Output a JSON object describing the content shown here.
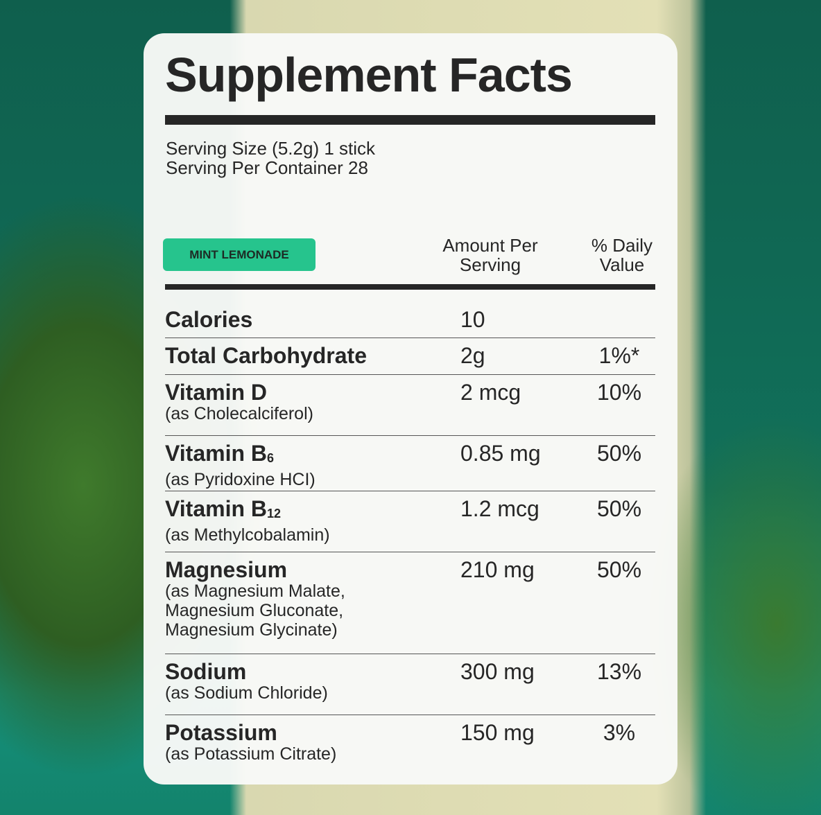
{
  "header": {
    "title": "Supplement Facts"
  },
  "serving": {
    "size": "Serving Size (5.2g) 1 stick",
    "per_container": "Serving Per Container 28"
  },
  "flavor": "MINT LEMONADE",
  "columns": {
    "amount": [
      "Amount Per",
      "Serving"
    ],
    "daily_value": [
      "% Daily",
      "Value"
    ]
  },
  "rows": [
    {
      "name": "Calories",
      "amount": "10"
    },
    {
      "name": "Total Carbohydrate",
      "amount": "2g",
      "daily_value": "1%*"
    },
    {
      "name": "Vitamin D",
      "source": [
        "(as Cholecalciferol)"
      ],
      "amount": "2 mcg",
      "daily_value": "10%"
    },
    {
      "name": "Vitamin B",
      "subscript": "6",
      "source": [
        "(as Pyridoxine HCI)"
      ],
      "amount": "0.85 mg",
      "daily_value": "50%"
    },
    {
      "name": "Vitamin B",
      "subscript": "12",
      "source": [
        "(as Methylcobalamin)"
      ],
      "amount": "1.2 mcg",
      "daily_value": "50%"
    },
    {
      "name": "Magnesium",
      "source": [
        "(as Magnesium Malate,",
        "Magnesium Gluconate,",
        "Magnesium Glycinate)"
      ],
      "amount": "210 mg",
      "daily_value": "50%"
    },
    {
      "name": "Sodium",
      "source": [
        "(as Sodium Chloride)"
      ],
      "amount": "300 mg",
      "daily_value": "13%"
    },
    {
      "name": "Potassium",
      "source": [
        "(as Potassium Citrate)"
      ],
      "amount": "150 mg",
      "daily_value": "3%"
    }
  ]
}
